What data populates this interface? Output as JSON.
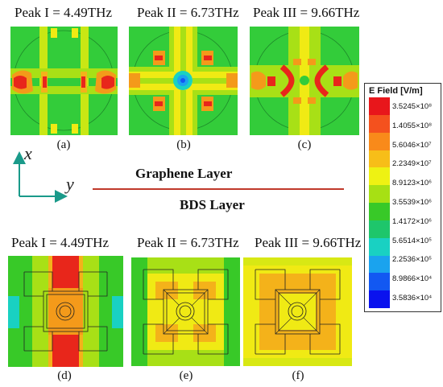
{
  "top_row": {
    "peaks": [
      "Peak I = 4.49THz",
      "Peak II = 6.73THz",
      "Peak III = 9.66THz"
    ],
    "subfigures": [
      "(a)",
      "(b)",
      "(c)"
    ]
  },
  "bottom_row": {
    "peaks": [
      "Peak I = 4.49THz",
      "Peak II = 6.73THz",
      "Peak III = 9.66THz"
    ],
    "subfigures": [
      "(d)",
      "(e)",
      "(f)"
    ]
  },
  "axes": {
    "x": "x",
    "y": "y"
  },
  "layers": {
    "top": "Graphene Layer",
    "bottom": "BDS Layer"
  },
  "legend": {
    "title": "E Field [V/m]",
    "ticks": [
      "3.5245×10⁸",
      "1.4055×10⁸",
      "5.6046×10⁷",
      "2.2349×10⁷",
      "8.9123×10⁶",
      "3.5539×10⁶",
      "1.4172×10⁶",
      "5.6514×10⁵",
      "2.2536×10⁵",
      "8.9866×10⁴",
      "3.5836×10⁴"
    ],
    "colors": [
      "#e8161b",
      "#f4511e",
      "#f98a1a",
      "#f7be18",
      "#eef213",
      "#a7e014",
      "#38c928",
      "#1ec66b",
      "#19d1c2",
      "#1aa3ee",
      "#1258f2",
      "#0a12ee"
    ]
  },
  "colors": {
    "green_field": "#2fcd3d",
    "yellow": "#f0ea14",
    "orange": "#f49a1a",
    "red": "#e8261b",
    "divider": "#c0392b",
    "axis_arrow": "#1a9a8a"
  }
}
